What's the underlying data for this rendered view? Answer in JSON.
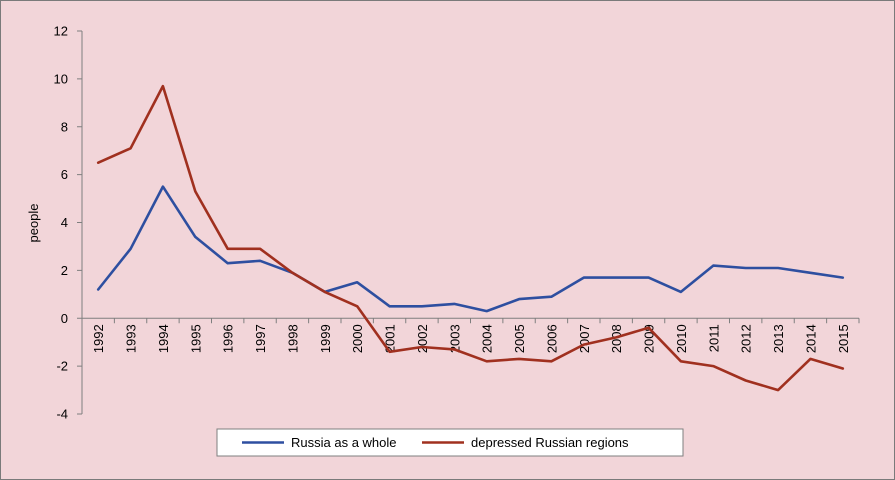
{
  "chart_data": {
    "type": "line",
    "title": "",
    "xlabel": "",
    "ylabel": "people",
    "ylim": [
      -4,
      12
    ],
    "yticks": [
      -4,
      -2,
      0,
      2,
      4,
      6,
      8,
      10,
      12
    ],
    "grid": false,
    "legend_position": "bottom",
    "categories": [
      "1992",
      "1993",
      "1994",
      "1995",
      "1996",
      "1997",
      "1998",
      "1999",
      "2000",
      "2001",
      "2002",
      "2003",
      "2004",
      "2005",
      "2006",
      "2007",
      "2008",
      "2009",
      "2010",
      "2011",
      "2012",
      "2013",
      "2014",
      "2015"
    ],
    "series": [
      {
        "name": "Russia as a whole",
        "color": "#2e4fa0",
        "values": [
          1.2,
          2.9,
          5.5,
          3.4,
          2.3,
          2.4,
          1.9,
          1.1,
          1.5,
          0.5,
          0.5,
          0.6,
          0.3,
          0.8,
          0.9,
          1.7,
          1.7,
          1.7,
          1.1,
          2.2,
          2.1,
          2.1,
          1.9,
          1.7
        ]
      },
      {
        "name": "depressed Russian regions",
        "color": "#a0301f",
        "values": [
          6.5,
          7.1,
          9.7,
          5.3,
          2.9,
          2.9,
          1.9,
          1.1,
          0.5,
          -1.4,
          -1.2,
          -1.3,
          -1.8,
          -1.7,
          -1.8,
          -1.1,
          -0.8,
          -0.4,
          -1.8,
          -2.0,
          -2.6,
          -3.0,
          -1.7,
          -2.1
        ]
      }
    ]
  }
}
